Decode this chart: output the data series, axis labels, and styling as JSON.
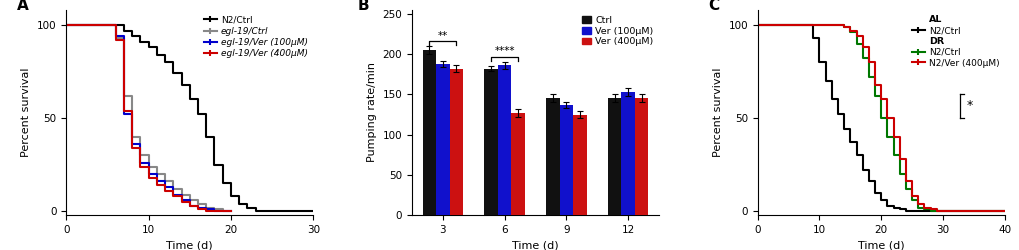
{
  "panelA": {
    "xlabel": "Time (d)",
    "ylabel": "Percent survival",
    "xlim": [
      0,
      30
    ],
    "ylim": [
      -2,
      108
    ],
    "xticks": [
      0,
      10,
      20,
      30
    ],
    "yticks": [
      0,
      50,
      100
    ],
    "lines": {
      "N2_ctrl": {
        "label": "N2/Ctrl",
        "italic_part": "",
        "color": "#000000",
        "x": [
          0,
          7,
          7,
          8,
          8,
          9,
          9,
          10,
          10,
          11,
          11,
          12,
          12,
          13,
          13,
          14,
          14,
          15,
          15,
          16,
          16,
          17,
          17,
          18,
          18,
          19,
          19,
          20,
          20,
          21,
          21,
          22,
          22,
          23,
          23,
          30
        ],
        "y": [
          100,
          100,
          97,
          97,
          94,
          94,
          91,
          91,
          88,
          88,
          84,
          84,
          80,
          80,
          74,
          74,
          68,
          68,
          60,
          60,
          52,
          52,
          40,
          40,
          25,
          25,
          15,
          15,
          8,
          8,
          4,
          4,
          2,
          2,
          0,
          0
        ]
      },
      "egl19_ctrl": {
        "label": "egl-19/Ctrl",
        "italic_part": "egl-19",
        "color": "#888888",
        "x": [
          0,
          6,
          6,
          7,
          7,
          8,
          8,
          9,
          9,
          10,
          10,
          11,
          11,
          12,
          12,
          13,
          13,
          14,
          14,
          15,
          15,
          16,
          16,
          17,
          17,
          18,
          18,
          19,
          19,
          20,
          20
        ],
        "y": [
          100,
          100,
          93,
          93,
          62,
          62,
          40,
          40,
          30,
          30,
          24,
          24,
          20,
          20,
          16,
          16,
          12,
          12,
          9,
          9,
          6,
          6,
          4,
          4,
          2,
          2,
          1,
          1,
          0,
          0,
          0
        ]
      },
      "egl19_ver100": {
        "label": "egl-19/Ver (100μM)",
        "italic_part": "egl-19",
        "color": "#0000CC",
        "x": [
          0,
          6,
          6,
          7,
          7,
          8,
          8,
          9,
          9,
          10,
          10,
          11,
          11,
          12,
          12,
          13,
          13,
          14,
          14,
          15,
          15,
          16,
          16,
          17,
          17,
          18,
          18,
          19,
          19,
          20,
          20
        ],
        "y": [
          100,
          100,
          94,
          94,
          52,
          52,
          36,
          36,
          26,
          26,
          20,
          20,
          16,
          16,
          13,
          13,
          9,
          9,
          6,
          6,
          3,
          3,
          2,
          2,
          1,
          1,
          0,
          0,
          0,
          0,
          0
        ]
      },
      "egl19_ver400": {
        "label": "egl-19/Ver (400μM)",
        "italic_part": "egl-19",
        "color": "#CC0000",
        "x": [
          0,
          6,
          6,
          7,
          7,
          8,
          8,
          9,
          9,
          10,
          10,
          11,
          11,
          12,
          12,
          13,
          13,
          14,
          14,
          15,
          15,
          16,
          16,
          17,
          17,
          18,
          18,
          19,
          19,
          20,
          20
        ],
        "y": [
          100,
          100,
          92,
          92,
          54,
          54,
          34,
          34,
          24,
          24,
          18,
          18,
          14,
          14,
          11,
          11,
          8,
          8,
          5,
          5,
          3,
          3,
          1,
          1,
          0,
          0,
          0,
          0,
          0,
          0,
          0
        ]
      }
    }
  },
  "panelB": {
    "xlabel": "Time (d)",
    "ylabel": "Pumping rate/min",
    "xlim_groups": [
      3,
      6,
      9,
      12
    ],
    "ylim": [
      0,
      255
    ],
    "yticks": [
      0,
      50,
      100,
      150,
      200,
      250
    ],
    "bar_width": 0.22,
    "colors": {
      "ctrl": "#111111",
      "ver100": "#1111CC",
      "ver400": "#CC1111"
    },
    "data": {
      "day3": {
        "ctrl": [
          205,
          5
        ],
        "ver100": [
          188,
          4
        ],
        "ver400": [
          182,
          4
        ]
      },
      "day6": {
        "ctrl": [
          182,
          3
        ],
        "ver100": [
          186,
          4
        ],
        "ver400": [
          127,
          5
        ]
      },
      "day9": {
        "ctrl": [
          146,
          5
        ],
        "ver100": [
          137,
          4
        ],
        "ver400": [
          125,
          4
        ]
      },
      "day12": {
        "ctrl": [
          146,
          5
        ],
        "ver100": [
          153,
          5
        ],
        "ver400": [
          145,
          5
        ]
      }
    },
    "legend_labels": [
      "Ctrl",
      "Ver (100μM)",
      "Ver (400μM)"
    ]
  },
  "panelC": {
    "xlabel": "Time (d)",
    "ylabel": "Percent survival",
    "xlim": [
      0,
      40
    ],
    "ylim": [
      -2,
      108
    ],
    "xticks": [
      0,
      10,
      20,
      30,
      40
    ],
    "yticks": [
      0,
      50,
      100
    ],
    "lines": {
      "AL_N2_ctrl": {
        "label": "N2/Ctrl",
        "group": "AL",
        "color": "#000000",
        "x": [
          0,
          9,
          9,
          10,
          10,
          11,
          11,
          12,
          12,
          13,
          13,
          14,
          14,
          15,
          15,
          16,
          16,
          17,
          17,
          18,
          18,
          19,
          19,
          20,
          20,
          21,
          21,
          22,
          22,
          23,
          23,
          24,
          24,
          25,
          25,
          26,
          26,
          40
        ],
        "y": [
          100,
          100,
          93,
          93,
          80,
          80,
          70,
          70,
          60,
          60,
          52,
          52,
          44,
          44,
          37,
          37,
          30,
          30,
          22,
          22,
          16,
          16,
          10,
          10,
          6,
          6,
          3,
          3,
          2,
          2,
          1,
          1,
          0,
          0,
          0,
          0,
          0,
          0
        ]
      },
      "DR_N2_ctrl": {
        "label": "N2/Ctrl",
        "group": "DR",
        "color": "#007700",
        "x": [
          0,
          14,
          14,
          15,
          15,
          16,
          16,
          17,
          17,
          18,
          18,
          19,
          19,
          20,
          20,
          21,
          21,
          22,
          22,
          23,
          23,
          24,
          24,
          25,
          25,
          26,
          26,
          27,
          27,
          28,
          28,
          29,
          29,
          30,
          30,
          40
        ],
        "y": [
          100,
          100,
          99,
          99,
          96,
          96,
          90,
          90,
          82,
          82,
          72,
          72,
          62,
          62,
          50,
          50,
          40,
          40,
          30,
          30,
          20,
          20,
          12,
          12,
          6,
          6,
          2,
          2,
          1,
          1,
          0,
          0,
          0,
          0,
          0,
          0
        ]
      },
      "DR_N2_ver400": {
        "label": "N2/Ver (400μM)",
        "group": "DR",
        "color": "#CC0000",
        "x": [
          0,
          14,
          14,
          15,
          15,
          16,
          16,
          17,
          17,
          18,
          18,
          19,
          19,
          20,
          20,
          21,
          21,
          22,
          22,
          23,
          23,
          24,
          24,
          25,
          25,
          26,
          26,
          27,
          27,
          28,
          28,
          29,
          29,
          30,
          30,
          31,
          31,
          40
        ],
        "y": [
          100,
          100,
          99,
          99,
          97,
          97,
          94,
          94,
          88,
          88,
          80,
          80,
          68,
          68,
          60,
          60,
          50,
          50,
          40,
          40,
          28,
          28,
          16,
          16,
          8,
          8,
          4,
          4,
          2,
          2,
          1,
          1,
          0,
          0,
          0,
          0,
          0,
          0
        ]
      }
    }
  }
}
